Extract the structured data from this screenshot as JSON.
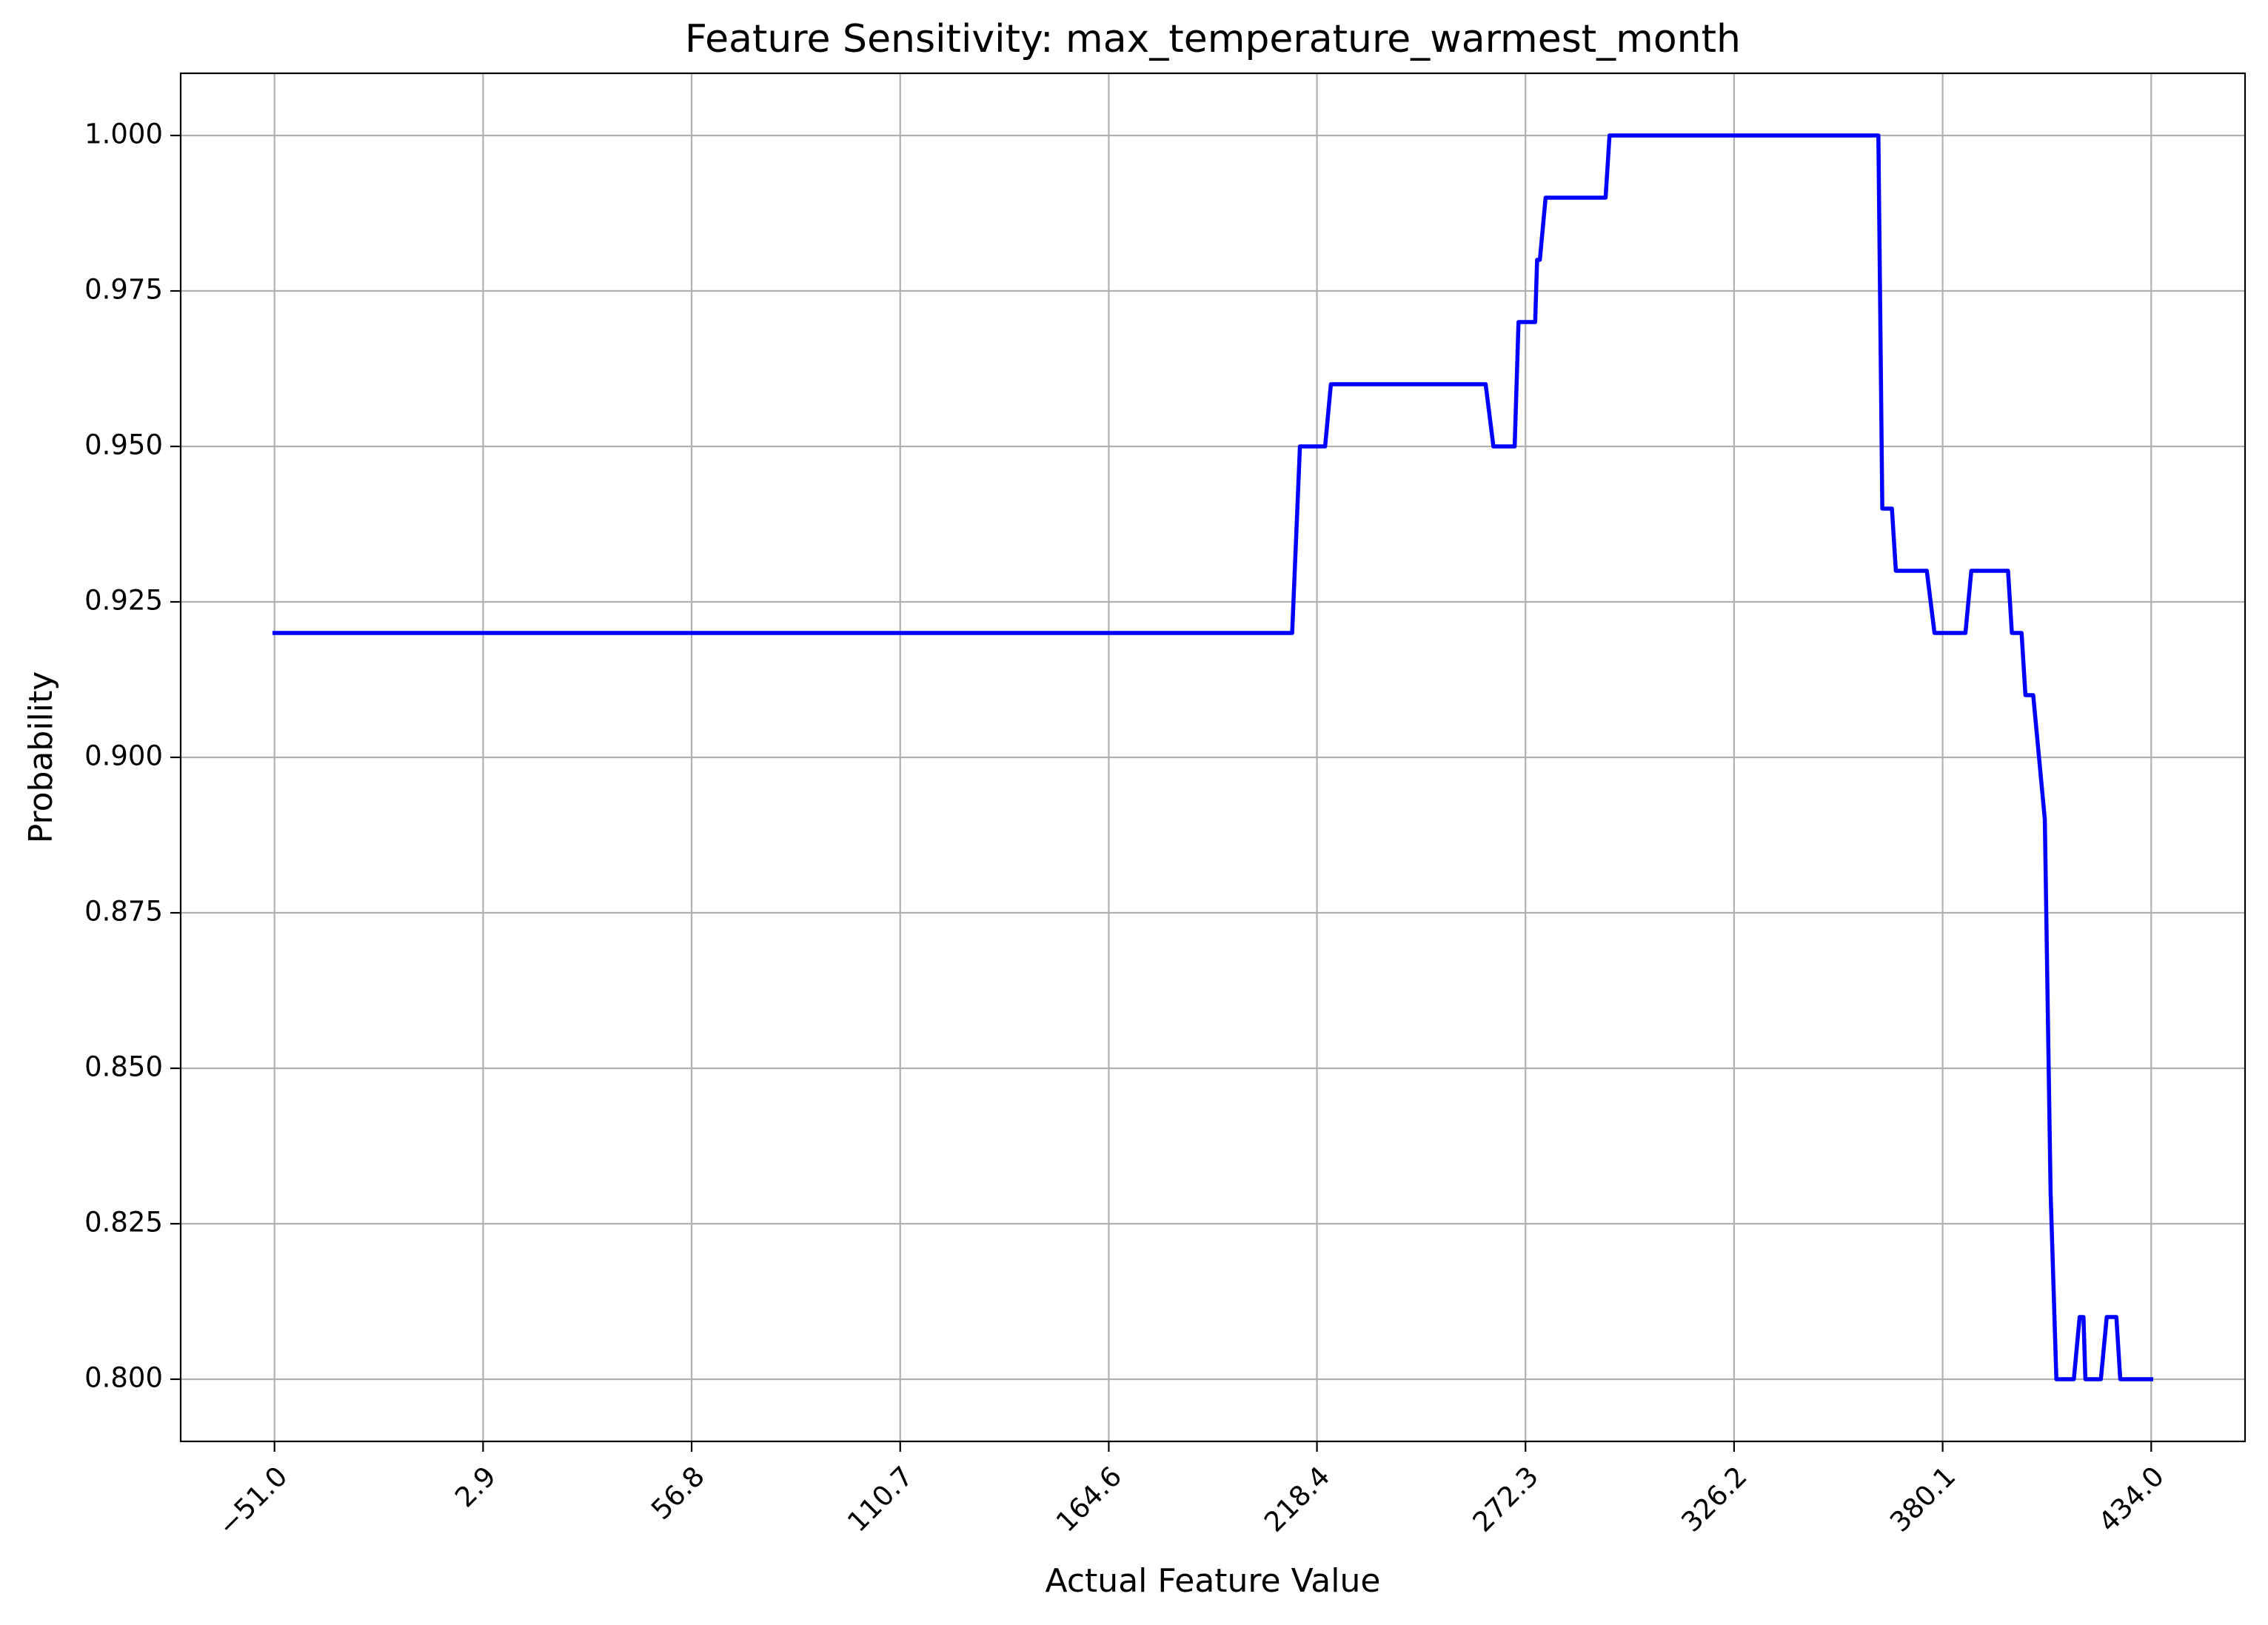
{
  "chart_data": {
    "type": "line",
    "title": "Feature Sensitivity: max_temperature_warmest_month",
    "xlabel": "Actual Feature Value",
    "ylabel": "Probability",
    "xlim": [
      -75.25,
      458.25
    ],
    "ylim": [
      0.79,
      1.01
    ],
    "grid": true,
    "line_color": "#0000ff",
    "x_ticks": [
      -51.0,
      2.9,
      56.8,
      110.7,
      164.6,
      218.4,
      272.3,
      326.2,
      380.1,
      434.0
    ],
    "x_tick_labels": [
      "−51.0",
      "2.9",
      "56.8",
      "110.7",
      "164.6",
      "218.4",
      "272.3",
      "326.2",
      "380.1",
      "434.0"
    ],
    "y_ticks": [
      0.8,
      0.825,
      0.85,
      0.875,
      0.9,
      0.925,
      0.95,
      0.975,
      1.0
    ],
    "y_tick_labels": [
      "0.800",
      "0.825",
      "0.850",
      "0.875",
      "0.900",
      "0.925",
      "0.950",
      "0.975",
      "1.000"
    ],
    "series": [
      {
        "x": [
          -51.0,
          212.0,
          214.0,
          220.5,
          222.0,
          262.0,
          264.0,
          269.5,
          270.5,
          274.8,
          275.3,
          276.0,
          277.5,
          293.0,
          294.0,
          363.5,
          364.5,
          367.0,
          368.0,
          376.0,
          378.0,
          386.0,
          387.5,
          397.0,
          398.0,
          400.5,
          401.5,
          403.5,
          406.5,
          408.0,
          409.5,
          411.5,
          413.5,
          414.0,
          415.5,
          416.5,
          417.0,
          421.0,
          422.5,
          425.0,
          426.0,
          434.0
        ],
        "y": [
          0.92,
          0.92,
          0.95,
          0.95,
          0.96,
          0.96,
          0.95,
          0.95,
          0.97,
          0.97,
          0.98,
          0.98,
          0.99,
          0.99,
          1.0,
          1.0,
          0.94,
          0.94,
          0.93,
          0.93,
          0.92,
          0.92,
          0.93,
          0.93,
          0.92,
          0.92,
          0.91,
          0.91,
          0.89,
          0.83,
          0.8,
          0.8,
          0.8,
          0.8,
          0.81,
          0.81,
          0.8,
          0.8,
          0.81,
          0.81,
          0.8,
          0.8
        ]
      }
    ]
  }
}
